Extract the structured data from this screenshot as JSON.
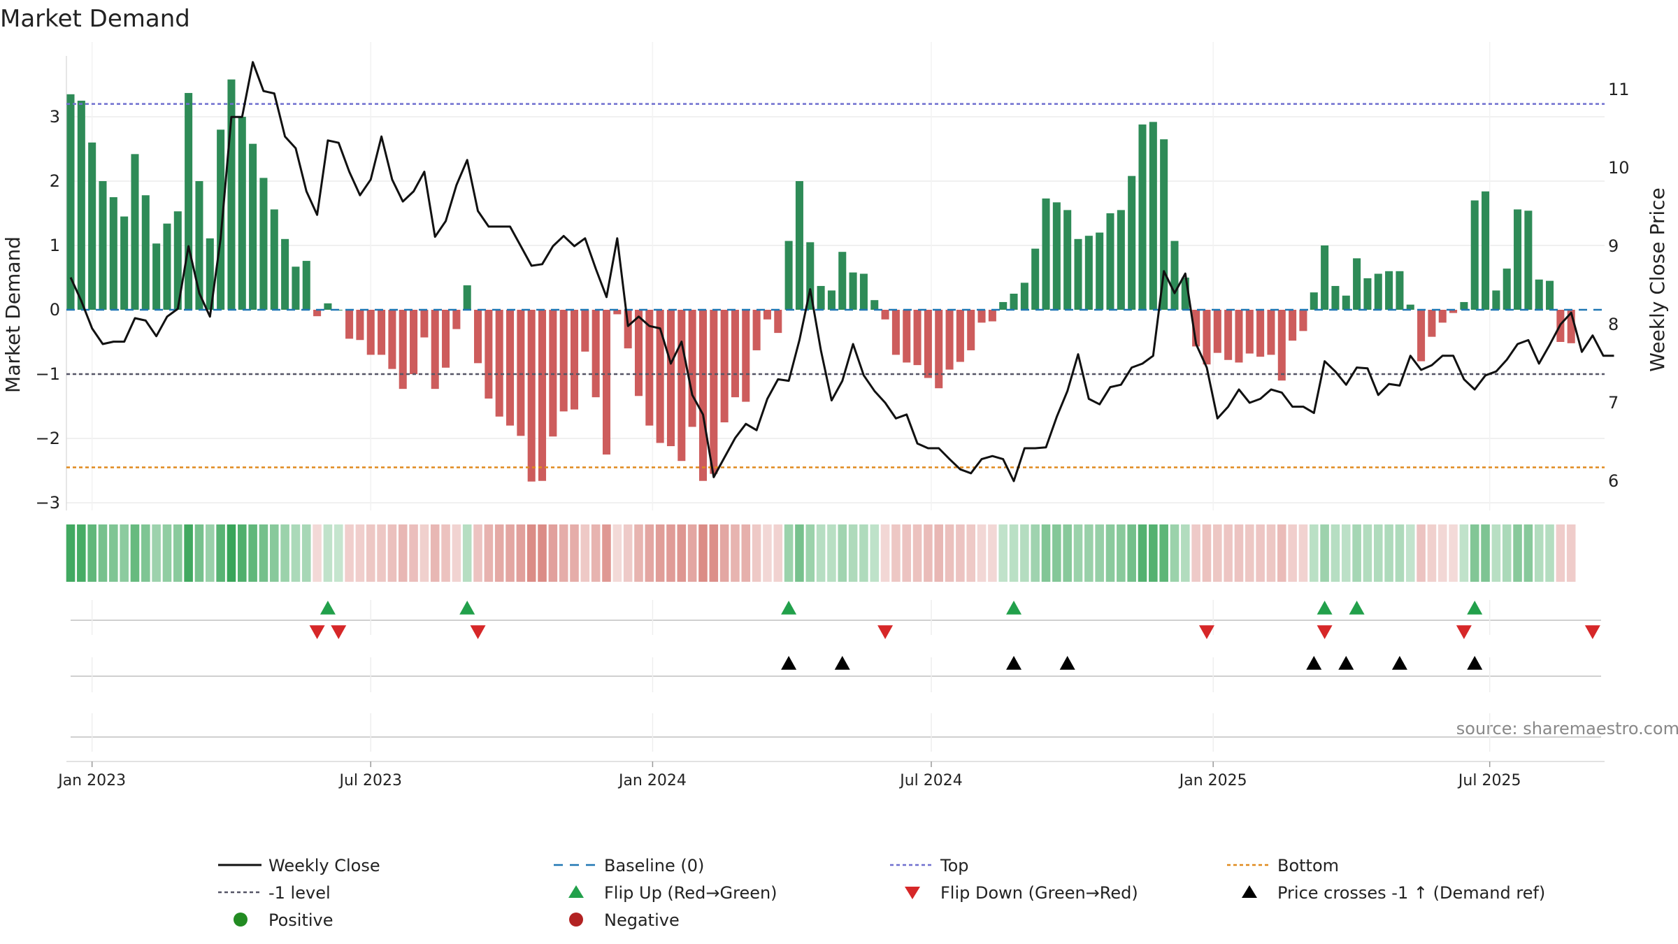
{
  "chart_data": {
    "type": "bar",
    "title": "Market Demand",
    "ylabel": "Market Demand",
    "y2label": "Weekly Close Price",
    "ylim": [
      -3.4,
      3.9
    ],
    "y2lim": [
      5.6,
      11.2
    ],
    "yticks": [
      "3",
      "2",
      "1",
      "0",
      "−1",
      "−2",
      "−3"
    ],
    "y2ticks": [
      "11",
      "10",
      "9",
      "8",
      "7",
      "6"
    ],
    "x_ticks": [
      {
        "label": "Jan 2023",
        "week": 2
      },
      {
        "label": "Jul 2023",
        "week": 28
      },
      {
        "label": "Jan 2024",
        "week": 54.3
      },
      {
        "label": "Jul 2024",
        "week": 80.3
      },
      {
        "label": "Jan 2025",
        "week": 106.6
      },
      {
        "label": "Jul 2025",
        "week": 132.4
      }
    ],
    "reference_lines": {
      "top": 3.2,
      "bottom": -2.45,
      "minus_one": -1,
      "baseline": 0
    },
    "series": [
      {
        "name": "Market Demand",
        "values": [
          3.35,
          3.25,
          2.6,
          2.0,
          1.75,
          1.45,
          2.42,
          1.78,
          1.03,
          1.34,
          1.53,
          3.37,
          2.0,
          1.11,
          2.8,
          3.58,
          3.0,
          2.58,
          2.05,
          1.56,
          1.1,
          0.67,
          0.76,
          -0.1,
          0.1,
          0.0,
          -0.45,
          -0.47,
          -0.7,
          -0.7,
          -0.92,
          -1.23,
          -1.0,
          -0.43,
          -1.23,
          -0.9,
          -0.3,
          0.38,
          -0.83,
          -1.38,
          -1.66,
          -1.8,
          -1.96,
          -2.67,
          -2.66,
          -1.97,
          -1.58,
          -1.55,
          -0.65,
          -1.36,
          -2.25,
          -0.07,
          -0.6,
          -1.34,
          -1.8,
          -2.07,
          -2.12,
          -2.35,
          -1.82,
          -2.66,
          -2.55,
          -1.75,
          -1.36,
          -1.43,
          -0.63,
          -0.15,
          -0.36,
          1.07,
          2.0,
          1.05,
          0.37,
          0.3,
          0.9,
          0.58,
          0.56,
          0.15,
          -0.15,
          -0.7,
          -0.82,
          -0.86,
          -1.06,
          -1.22,
          -0.93,
          -0.81,
          -0.63,
          -0.2,
          -0.18,
          0.12,
          0.25,
          0.42,
          0.95,
          1.73,
          1.67,
          1.55,
          1.1,
          1.15,
          1.2,
          1.5,
          1.55,
          2.08,
          2.88,
          2.92,
          2.65,
          1.07,
          0.5,
          -0.57,
          -0.85,
          -0.67,
          -0.78,
          -0.82,
          -0.68,
          -0.73,
          -0.7,
          -1.1,
          -0.48,
          -0.33,
          0.27,
          1.0,
          0.37,
          0.22,
          0.8,
          0.49,
          0.56,
          0.6,
          0.6,
          0.08,
          -0.8,
          -0.42,
          -0.2,
          -0.05,
          0.12,
          1.7,
          1.84,
          0.3,
          0.64,
          1.56,
          1.54,
          0.47,
          0.45,
          -0.5,
          -0.52
        ]
      },
      {
        "name": "Weekly Close",
        "values": [
          8.6,
          8.3,
          7.95,
          7.75,
          7.78,
          7.78,
          8.08,
          8.05,
          7.85,
          8.1,
          8.2,
          9.0,
          8.4,
          8.1,
          9.1,
          10.65,
          10.65,
          11.35,
          10.98,
          10.95,
          10.4,
          10.25,
          9.7,
          9.4,
          10.35,
          10.32,
          9.95,
          9.65,
          9.85,
          10.4,
          9.85,
          9.57,
          9.7,
          9.95,
          9.12,
          9.32,
          9.78,
          10.1,
          9.45,
          9.25,
          9.25,
          9.25,
          9.0,
          8.75,
          8.77,
          9.0,
          9.13,
          9.0,
          9.1,
          8.71,
          8.35,
          9.1,
          7.98,
          8.1,
          7.98,
          7.95,
          7.5,
          7.78,
          7.1,
          6.85,
          6.05,
          6.3,
          6.55,
          6.73,
          6.65,
          7.05,
          7.3,
          7.28,
          7.8,
          8.45,
          7.67,
          7.03,
          7.28,
          7.75,
          7.35,
          7.15,
          7.0,
          6.8,
          6.85,
          6.48,
          6.42,
          6.42,
          6.28,
          6.15,
          6.1,
          6.28,
          6.32,
          6.28,
          6.0,
          6.42,
          6.42,
          6.43,
          6.82,
          7.15,
          7.62,
          7.05,
          6.98,
          7.2,
          7.23,
          7.45,
          7.5,
          7.6,
          8.68,
          8.4,
          8.65,
          7.75,
          7.45,
          6.8,
          6.95,
          7.17,
          7.0,
          7.05,
          7.17,
          7.13,
          6.95,
          6.95,
          6.87,
          7.53,
          7.4,
          7.23,
          7.45,
          7.44,
          7.1,
          7.24,
          7.22,
          7.6,
          7.42,
          7.48,
          7.6,
          7.6,
          7.3,
          7.17,
          7.35,
          7.4,
          7.55,
          7.75,
          7.8,
          7.5,
          7.74,
          8.0,
          8.15,
          7.65,
          7.86,
          7.6,
          7.6
        ]
      }
    ],
    "flip_up_weeks": [
      24,
      37,
      67,
      88,
      117,
      120,
      131
    ],
    "flip_down_weeks": [
      23,
      25,
      38,
      76,
      106,
      117,
      130,
      142
    ],
    "price_cross_weeks": [
      67,
      72,
      88,
      93,
      116,
      119,
      124,
      131
    ],
    "legend": [
      "Weekly Close",
      "Baseline (0)",
      "Top",
      "Bottom",
      "-1 level",
      "Flip Up (Red→Green)",
      "Flip Down (Green→Red)",
      "Price crosses -1 ↑ (Demand ref)",
      "Positive",
      "Negative"
    ],
    "source": "source: sharemaestro.com"
  },
  "colors": {
    "positive_bar": "#2e8b57",
    "negative_bar": "#cd5c5c",
    "line": "#111111",
    "top": "#6f6fcf",
    "bottom": "#e08a1e",
    "minus_one": "#555566",
    "baseline": "#1f77b4",
    "flip_up": "#22a04b",
    "flip_down": "#d62728",
    "positive_dot": "#228b22",
    "negative_dot": "#b22222"
  }
}
